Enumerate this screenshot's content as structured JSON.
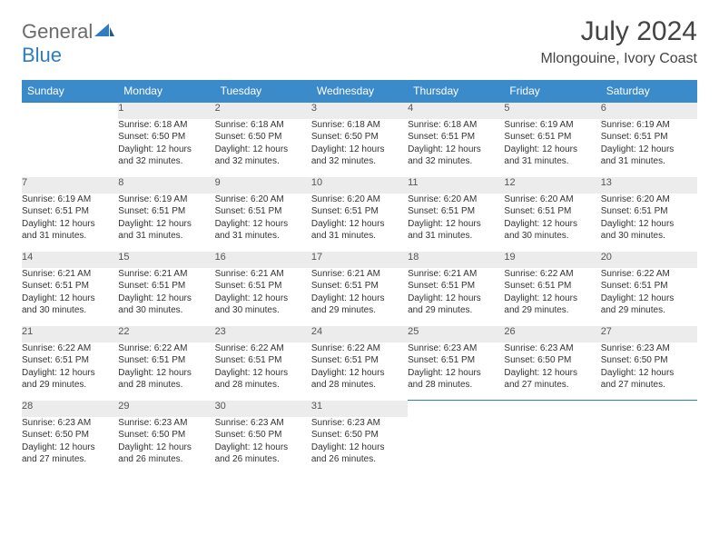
{
  "logo": {
    "word1": "General",
    "word2": "Blue"
  },
  "title": "July 2024",
  "location": "Mlongouine, Ivory Coast",
  "colors": {
    "header_bg": "#3b8bca",
    "header_text": "#ffffff",
    "daynum_bg": "#ececec",
    "border": "#2e7cc1",
    "body_text": "#333333",
    "logo_gray": "#6b6b6b",
    "logo_blue": "#2e7cc1"
  },
  "weekdays": [
    "Sunday",
    "Monday",
    "Tuesday",
    "Wednesday",
    "Thursday",
    "Friday",
    "Saturday"
  ],
  "weeks": [
    {
      "nums": [
        "",
        "1",
        "2",
        "3",
        "4",
        "5",
        "6"
      ],
      "cells": [
        null,
        {
          "sunrise": "Sunrise: 6:18 AM",
          "sunset": "Sunset: 6:50 PM",
          "day1": "Daylight: 12 hours",
          "day2": "and 32 minutes."
        },
        {
          "sunrise": "Sunrise: 6:18 AM",
          "sunset": "Sunset: 6:50 PM",
          "day1": "Daylight: 12 hours",
          "day2": "and 32 minutes."
        },
        {
          "sunrise": "Sunrise: 6:18 AM",
          "sunset": "Sunset: 6:50 PM",
          "day1": "Daylight: 12 hours",
          "day2": "and 32 minutes."
        },
        {
          "sunrise": "Sunrise: 6:18 AM",
          "sunset": "Sunset: 6:51 PM",
          "day1": "Daylight: 12 hours",
          "day2": "and 32 minutes."
        },
        {
          "sunrise": "Sunrise: 6:19 AM",
          "sunset": "Sunset: 6:51 PM",
          "day1": "Daylight: 12 hours",
          "day2": "and 31 minutes."
        },
        {
          "sunrise": "Sunrise: 6:19 AM",
          "sunset": "Sunset: 6:51 PM",
          "day1": "Daylight: 12 hours",
          "day2": "and 31 minutes."
        }
      ]
    },
    {
      "nums": [
        "7",
        "8",
        "9",
        "10",
        "11",
        "12",
        "13"
      ],
      "cells": [
        {
          "sunrise": "Sunrise: 6:19 AM",
          "sunset": "Sunset: 6:51 PM",
          "day1": "Daylight: 12 hours",
          "day2": "and 31 minutes."
        },
        {
          "sunrise": "Sunrise: 6:19 AM",
          "sunset": "Sunset: 6:51 PM",
          "day1": "Daylight: 12 hours",
          "day2": "and 31 minutes."
        },
        {
          "sunrise": "Sunrise: 6:20 AM",
          "sunset": "Sunset: 6:51 PM",
          "day1": "Daylight: 12 hours",
          "day2": "and 31 minutes."
        },
        {
          "sunrise": "Sunrise: 6:20 AM",
          "sunset": "Sunset: 6:51 PM",
          "day1": "Daylight: 12 hours",
          "day2": "and 31 minutes."
        },
        {
          "sunrise": "Sunrise: 6:20 AM",
          "sunset": "Sunset: 6:51 PM",
          "day1": "Daylight: 12 hours",
          "day2": "and 31 minutes."
        },
        {
          "sunrise": "Sunrise: 6:20 AM",
          "sunset": "Sunset: 6:51 PM",
          "day1": "Daylight: 12 hours",
          "day2": "and 30 minutes."
        },
        {
          "sunrise": "Sunrise: 6:20 AM",
          "sunset": "Sunset: 6:51 PM",
          "day1": "Daylight: 12 hours",
          "day2": "and 30 minutes."
        }
      ]
    },
    {
      "nums": [
        "14",
        "15",
        "16",
        "17",
        "18",
        "19",
        "20"
      ],
      "cells": [
        {
          "sunrise": "Sunrise: 6:21 AM",
          "sunset": "Sunset: 6:51 PM",
          "day1": "Daylight: 12 hours",
          "day2": "and 30 minutes."
        },
        {
          "sunrise": "Sunrise: 6:21 AM",
          "sunset": "Sunset: 6:51 PM",
          "day1": "Daylight: 12 hours",
          "day2": "and 30 minutes."
        },
        {
          "sunrise": "Sunrise: 6:21 AM",
          "sunset": "Sunset: 6:51 PM",
          "day1": "Daylight: 12 hours",
          "day2": "and 30 minutes."
        },
        {
          "sunrise": "Sunrise: 6:21 AM",
          "sunset": "Sunset: 6:51 PM",
          "day1": "Daylight: 12 hours",
          "day2": "and 29 minutes."
        },
        {
          "sunrise": "Sunrise: 6:21 AM",
          "sunset": "Sunset: 6:51 PM",
          "day1": "Daylight: 12 hours",
          "day2": "and 29 minutes."
        },
        {
          "sunrise": "Sunrise: 6:22 AM",
          "sunset": "Sunset: 6:51 PM",
          "day1": "Daylight: 12 hours",
          "day2": "and 29 minutes."
        },
        {
          "sunrise": "Sunrise: 6:22 AM",
          "sunset": "Sunset: 6:51 PM",
          "day1": "Daylight: 12 hours",
          "day2": "and 29 minutes."
        }
      ]
    },
    {
      "nums": [
        "21",
        "22",
        "23",
        "24",
        "25",
        "26",
        "27"
      ],
      "cells": [
        {
          "sunrise": "Sunrise: 6:22 AM",
          "sunset": "Sunset: 6:51 PM",
          "day1": "Daylight: 12 hours",
          "day2": "and 29 minutes."
        },
        {
          "sunrise": "Sunrise: 6:22 AM",
          "sunset": "Sunset: 6:51 PM",
          "day1": "Daylight: 12 hours",
          "day2": "and 28 minutes."
        },
        {
          "sunrise": "Sunrise: 6:22 AM",
          "sunset": "Sunset: 6:51 PM",
          "day1": "Daylight: 12 hours",
          "day2": "and 28 minutes."
        },
        {
          "sunrise": "Sunrise: 6:22 AM",
          "sunset": "Sunset: 6:51 PM",
          "day1": "Daylight: 12 hours",
          "day2": "and 28 minutes."
        },
        {
          "sunrise": "Sunrise: 6:23 AM",
          "sunset": "Sunset: 6:51 PM",
          "day1": "Daylight: 12 hours",
          "day2": "and 28 minutes."
        },
        {
          "sunrise": "Sunrise: 6:23 AM",
          "sunset": "Sunset: 6:50 PM",
          "day1": "Daylight: 12 hours",
          "day2": "and 27 minutes."
        },
        {
          "sunrise": "Sunrise: 6:23 AM",
          "sunset": "Sunset: 6:50 PM",
          "day1": "Daylight: 12 hours",
          "day2": "and 27 minutes."
        }
      ]
    },
    {
      "nums": [
        "28",
        "29",
        "30",
        "31",
        "",
        "",
        ""
      ],
      "cells": [
        {
          "sunrise": "Sunrise: 6:23 AM",
          "sunset": "Sunset: 6:50 PM",
          "day1": "Daylight: 12 hours",
          "day2": "and 27 minutes."
        },
        {
          "sunrise": "Sunrise: 6:23 AM",
          "sunset": "Sunset: 6:50 PM",
          "day1": "Daylight: 12 hours",
          "day2": "and 26 minutes."
        },
        {
          "sunrise": "Sunrise: 6:23 AM",
          "sunset": "Sunset: 6:50 PM",
          "day1": "Daylight: 12 hours",
          "day2": "and 26 minutes."
        },
        {
          "sunrise": "Sunrise: 6:23 AM",
          "sunset": "Sunset: 6:50 PM",
          "day1": "Daylight: 12 hours",
          "day2": "and 26 minutes."
        },
        null,
        null,
        null
      ]
    }
  ]
}
